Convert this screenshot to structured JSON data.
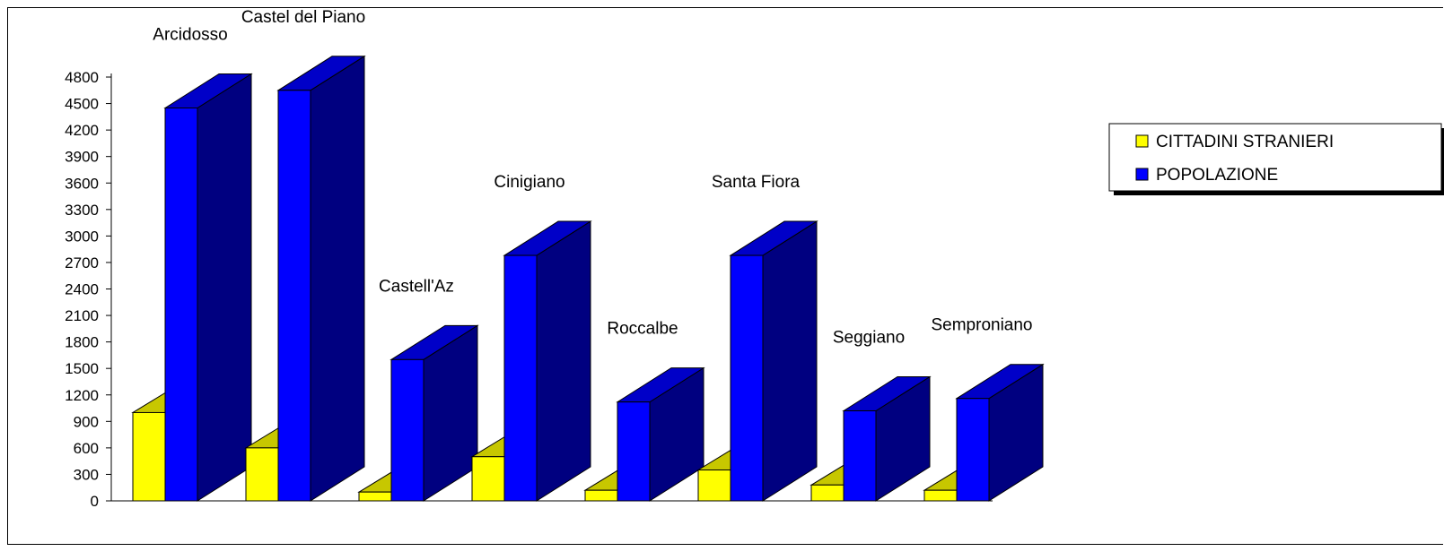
{
  "chart_data": {
    "type": "bar",
    "style": "3d-column",
    "categories": [
      "Arcidosso",
      "Castel del Piano",
      "Castell'Az",
      "Cinigiano",
      "Roccalbe",
      "Santa Fiora",
      "Seggiano",
      "Semproniano"
    ],
    "series": [
      {
        "name": "CITTADINI STRANIERI",
        "color": "#ffff00",
        "values": [
          1000,
          600,
          100,
          500,
          120,
          350,
          180,
          120
        ]
      },
      {
        "name": "POPOLAZIONE",
        "color": "#0000ff",
        "values": [
          4450,
          4650,
          1600,
          2780,
          1120,
          2780,
          1020,
          1160
        ]
      }
    ],
    "yticks": [
      0,
      300,
      600,
      900,
      1200,
      1500,
      1800,
      2100,
      2400,
      2700,
      3000,
      3300,
      3600,
      3900,
      4200,
      4500,
      4800
    ],
    "ylim": [
      0,
      4800
    ],
    "legend_position": "right",
    "grid": false,
    "title": "",
    "xlabel": "",
    "ylabel": ""
  }
}
